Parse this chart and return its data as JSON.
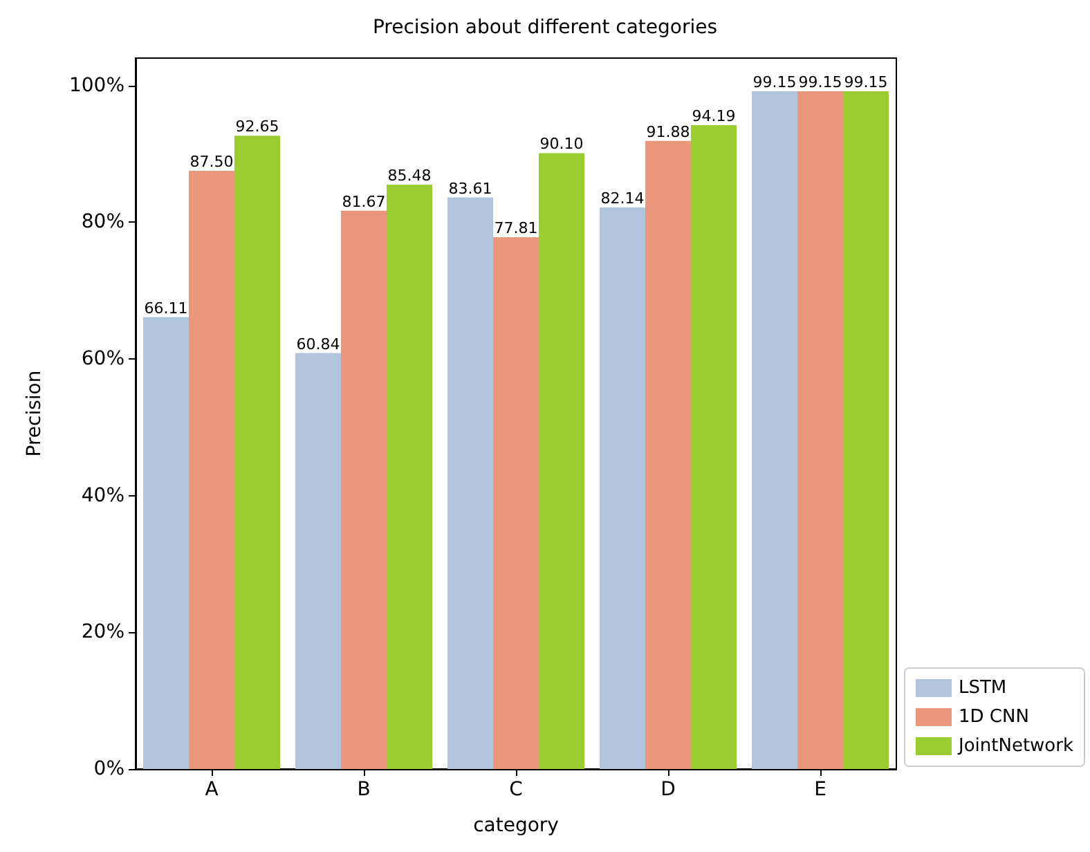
{
  "chart_data": {
    "type": "bar",
    "title": "Precision about different categories",
    "xlabel": "category",
    "ylabel": "Precision",
    "categories": [
      "A",
      "B",
      "C",
      "D",
      "E"
    ],
    "series": [
      {
        "name": "LSTM",
        "color": "#b0c4de",
        "values": [
          66.11,
          60.84,
          83.61,
          82.14,
          99.15
        ],
        "value_labels": [
          "66.11",
          "60.84",
          "83.61",
          "82.14",
          "99.15"
        ]
      },
      {
        "name": "1D CNN",
        "color": "#e9967a",
        "values": [
          87.5,
          81.67,
          77.81,
          91.88,
          99.15
        ],
        "value_labels": [
          "87.50",
          "81.67",
          "77.81",
          "91.88",
          "99.15"
        ]
      },
      {
        "name": "JointNetwork",
        "color": "#9acd32",
        "values": [
          92.65,
          85.48,
          90.1,
          94.19,
          99.15
        ],
        "value_labels": [
          "92.65",
          "85.48",
          "90.10",
          "94.19",
          "99.15"
        ]
      }
    ],
    "ylim": [
      0,
      104
    ],
    "yticks": [
      {
        "value": 0,
        "label": "0%"
      },
      {
        "value": 20,
        "label": "20%"
      },
      {
        "value": 40,
        "label": "40%"
      },
      {
        "value": 60,
        "label": "60%"
      },
      {
        "value": 80,
        "label": "80%"
      },
      {
        "value": 100,
        "label": "100%"
      }
    ],
    "grid": false,
    "legend": "bottom right"
  }
}
